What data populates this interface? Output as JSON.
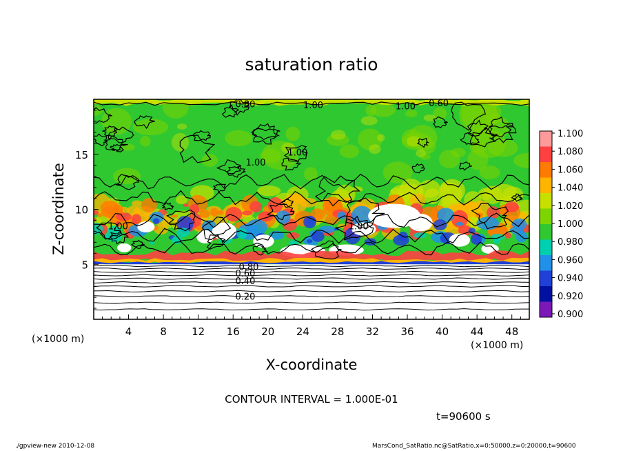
{
  "chart_data": {
    "type": "heatmap",
    "title": "saturation ratio",
    "xlabel": "X-coordinate",
    "ylabel": "Z-coordinate",
    "x_unit": "(×1000 m)",
    "z_unit": "(×1000 m)",
    "xlim": [
      0,
      50
    ],
    "zlim": [
      0,
      20
    ],
    "x_ticks": [
      4,
      8,
      12,
      16,
      20,
      24,
      28,
      32,
      36,
      40,
      44,
      48
    ],
    "z_ticks": [
      5,
      10,
      15
    ],
    "contour_interval_label": "CONTOUR INTERVAL = 1.000E-01",
    "time_label": "t=90600 s",
    "colorbar": {
      "levels": [
        "1.100",
        "1.080",
        "1.060",
        "1.040",
        "1.020",
        "1.000",
        "0.980",
        "0.960",
        "0.940",
        "0.920",
        "0.900"
      ],
      "colors": [
        "#ff9a9a",
        "#ff4040",
        "#ff7a00",
        "#ffb400",
        "#c8e000",
        "#7cd400",
        "#30c830",
        "#00d0b0",
        "#2090e8",
        "#2040d8",
        "#0010a0",
        "#7a18b8"
      ]
    },
    "contour_labels": [
      {
        "text": "0.80",
        "x": 17.4,
        "z": 19.6
      },
      {
        "text": "1.00",
        "x": 25.2,
        "z": 19.5
      },
      {
        "text": "1.00",
        "x": 35.8,
        "z": 19.4
      },
      {
        "text": "0.60",
        "x": 39.6,
        "z": 19.7
      },
      {
        "text": "1.00",
        "x": 18.6,
        "z": 14.3
      },
      {
        "text": "1.00",
        "x": 23.4,
        "z": 15.2
      },
      {
        "text": "1.00",
        "x": 2.8,
        "z": 8.5
      },
      {
        "text": "1.00",
        "x": 30.4,
        "z": 8.5
      },
      {
        "text": "0.80",
        "x": 17.8,
        "z": 4.8
      },
      {
        "text": "0.60",
        "x": 17.4,
        "z": 4.2
      },
      {
        "text": "0.40",
        "x": 17.4,
        "z": 3.5
      },
      {
        "text": "0.20",
        "x": 17.4,
        "z": 2.1
      }
    ]
  },
  "footer": {
    "left": "./gpview-new   2010-12-08",
    "right": "MarsCond_SatRatio.nc@SatRatio,x=0:50000,z=0:20000,t=90600"
  }
}
